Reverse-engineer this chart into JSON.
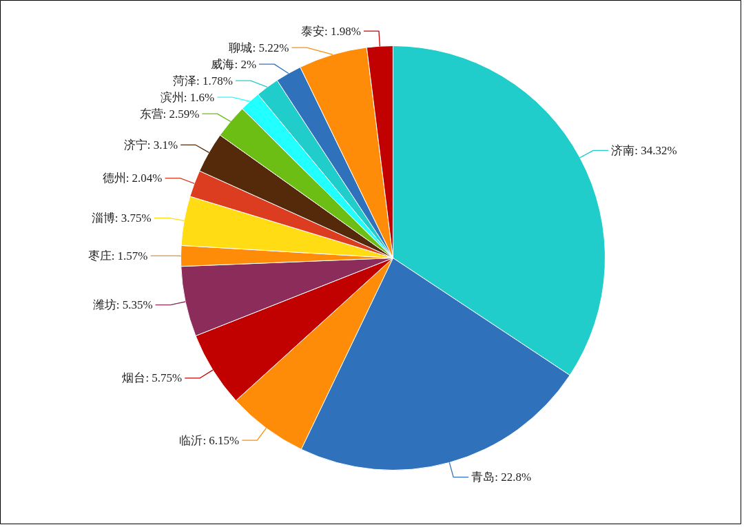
{
  "chart_data": {
    "type": "pie",
    "categories": [
      "济南",
      "青岛",
      "临沂",
      "烟台",
      "潍坊",
      "枣庄",
      "淄博",
      "德州",
      "济宁",
      "东营",
      "滨州",
      "菏泽",
      "威海",
      "聊城",
      "泰安"
    ],
    "values": [
      34.32,
      22.8,
      6.15,
      5.75,
      5.35,
      1.57,
      3.75,
      2.04,
      3.1,
      2.59,
      1.6,
      1.78,
      2,
      5.22,
      1.98
    ],
    "value_labels": [
      "34.32%",
      "22.8%",
      "6.15%",
      "5.75%",
      "5.35%",
      "1.57%",
      "3.75%",
      "2.04%",
      "3.1%",
      "2.59%",
      "1.6%",
      "1.78%",
      "2%",
      "5.22%",
      "1.98%"
    ],
    "colors": [
      "#20cdcb",
      "#3071bb",
      "#ff8c09",
      "#c10000",
      "#8b2c5a",
      "#ff8c09",
      "#ffdc14",
      "#dc3d20",
      "#552a0a",
      "#6cbd14",
      "#22ffff",
      "#20cdcb",
      "#3071bb",
      "#ff8c09",
      "#c10000"
    ]
  }
}
